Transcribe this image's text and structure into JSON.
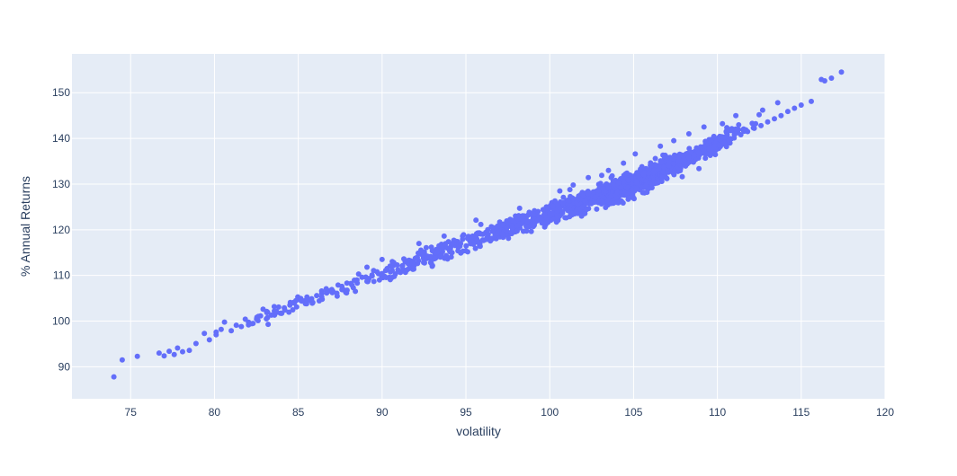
{
  "chart_data": {
    "type": "scatter",
    "xlabel": "volatility",
    "ylabel": "% Annual Returns",
    "xlim": [
      71.5,
      120
    ],
    "ylim": [
      83,
      158.5
    ],
    "x_ticks": [
      75,
      80,
      85,
      90,
      95,
      100,
      105,
      110,
      115,
      120
    ],
    "y_ticks": [
      90,
      100,
      110,
      120,
      130,
      140,
      150
    ],
    "grid": true,
    "background_color": "#e5ecf6",
    "grid_color": "#ffffff",
    "marker_color": "#636efa",
    "series": [
      {
        "x": [
          74.0,
          74.5,
          75.4,
          76.7,
          77.0,
          77.3,
          77.6,
          77.8,
          78.1,
          78.5,
          78.9,
          79.4,
          79.7,
          80.1,
          80.4,
          80.6,
          81.0,
          81.3,
          81.6,
          82.3,
          82.6,
          82.9,
          83.1,
          83.4,
          83.7,
          84.0,
          84.2,
          84.5,
          84.9,
          85.2,
          85.5,
          85.8,
          86.1,
          86.4,
          86.7,
          87.0,
          87.3,
          87.6,
          87.9,
          88.2,
          88.5,
          88.8,
          89.1,
          89.4,
          89.7,
          90.0,
          90.3,
          90.6,
          90.9,
          91.2,
          91.5,
          91.8,
          92.1,
          92.4,
          92.7,
          93.0,
          93.3,
          93.6,
          93.9,
          94.2,
          94.5,
          94.8,
          95.1,
          95.4,
          95.7,
          96.0,
          96.3,
          96.6,
          96.9,
          97.2,
          97.5,
          97.8,
          98.1,
          98.4,
          98.7,
          99.0,
          99.3,
          99.6,
          99.9,
          100.2,
          100.5,
          100.8,
          101.1,
          101.4,
          101.7,
          102.0,
          102.3,
          102.6,
          102.9,
          103.2,
          103.5,
          103.8,
          104.1,
          104.4,
          104.7,
          105.0,
          105.3,
          105.6,
          105.9,
          106.2,
          106.5,
          106.8,
          107.1,
          107.4,
          107.7,
          108.0,
          108.3,
          108.6,
          108.9,
          109.2,
          109.5,
          109.8,
          110.1,
          110.4,
          110.7,
          111.0,
          111.4,
          111.8,
          112.2,
          112.6,
          113.0,
          113.4,
          113.8,
          114.2,
          114.6,
          115.0,
          115.6,
          116.2,
          116.4,
          116.8,
          117.4
        ],
        "y": [
          87.8,
          91.5,
          92.3,
          93.0,
          92.4,
          93.4,
          92.7,
          94.1,
          93.3,
          93.6,
          95.1,
          97.3,
          95.9,
          97.6,
          98.2,
          99.8,
          97.9,
          99.1,
          98.8,
          99.5,
          100.1,
          102.6,
          100.5,
          101.3,
          101.9,
          101.7,
          102.4,
          103.5,
          103.1,
          104.4,
          103.8,
          104.9,
          105.6,
          105.3,
          106.4,
          106.9,
          106.1,
          107.6,
          108.3,
          107.9,
          109.0,
          109.6,
          108.7,
          110.1,
          110.8,
          110.4,
          111.5,
          111.1,
          112.3,
          112.0,
          113.2,
          112.8,
          113.9,
          114.5,
          114.2,
          115.4,
          115.1,
          116.2,
          116.0,
          117.0,
          117.4,
          117.9,
          118.1,
          118.6,
          119.3,
          119.0,
          120.0,
          120.5,
          120.8,
          121.1,
          121.6,
          122.0,
          122.3,
          122.9,
          123.2,
          123.6,
          124.0,
          124.4,
          124.8,
          125.1,
          125.6,
          125.9,
          126.3,
          126.8,
          127.0,
          127.5,
          127.9,
          128.3,
          128.6,
          129.0,
          129.4,
          129.8,
          130.2,
          130.5,
          130.9,
          131.3,
          131.7,
          132.1,
          132.4,
          132.8,
          133.2,
          133.7,
          134.0,
          134.5,
          134.9,
          135.4,
          135.8,
          136.3,
          136.8,
          137.2,
          137.7,
          138.2,
          138.6,
          139.1,
          139.6,
          140.1,
          140.8,
          141.5,
          142.2,
          142.8,
          143.6,
          144.3,
          145.0,
          145.9,
          146.6,
          147.3,
          148.1,
          152.9,
          152.6,
          153.2,
          154.5
        ]
      },
      {
        "x": [
          80.1,
          83.2,
          88.6,
          89.1,
          90.0,
          92.2,
          93.7,
          95.6,
          98.2,
          100.6,
          101.4,
          102.3,
          103.5,
          104.4,
          105.1,
          106.6,
          107.4,
          108.3,
          109.2,
          110.3,
          111.1,
          112.7,
          113.6,
          98.9,
          99.7,
          100.4,
          101.9,
          102.8,
          103.8,
          104.9,
          105.8,
          106.1,
          107.9,
          108.9,
          104.6,
          105.5,
          106.3,
          103.1,
          101.2,
          104.0
        ],
        "y": [
          97.0,
          99.3,
          110.3,
          111.8,
          113.5,
          117.0,
          118.6,
          122.1,
          124.7,
          128.5,
          129.8,
          131.4,
          133.0,
          134.6,
          136.6,
          138.3,
          139.5,
          141.0,
          142.5,
          143.2,
          145.0,
          146.2,
          147.8,
          119.6,
          120.6,
          121.7,
          123.0,
          124.5,
          125.8,
          127.1,
          128.2,
          129.2,
          131.6,
          133.4,
          132.4,
          133.8,
          135.6,
          131.9,
          128.8,
          126.0
        ]
      }
    ]
  }
}
